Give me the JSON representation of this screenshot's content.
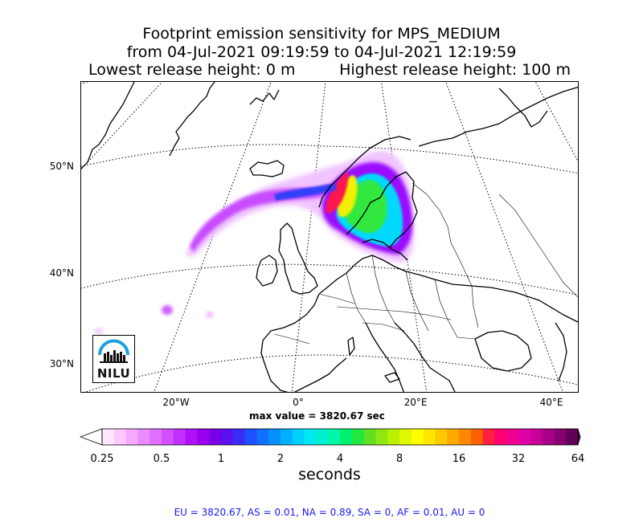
{
  "title": {
    "line1": "Footprint emission sensitivity for MPS_MEDIUM",
    "line2": "from 04-Jul-2021 09:19:59 to 04-Jul-2021 12:19:59",
    "line3_left": "Lowest release height: 0 m",
    "line3_right": "Highest release height: 100 m"
  },
  "map": {
    "lat_labels": [
      "50°N",
      "40°N",
      "30°N"
    ],
    "lon_labels": [
      "20°W",
      "0°",
      "20°E",
      "40°E"
    ],
    "max_value_text": "max value = 3820.67 sec",
    "logo_text": "NILU",
    "colors": {
      "coast": "#000000",
      "grid": "#000000",
      "plume_core": "#d4145a",
      "plume_outer": "#e8b0ff"
    }
  },
  "colorbar": {
    "tick_labels": [
      "0.25",
      "0.5",
      "1",
      "2",
      "4",
      "8",
      "16",
      "32",
      "64"
    ],
    "units_label": "seconds",
    "colors": [
      "#ffe8ff",
      "#ffc8ff",
      "#f5aaff",
      "#ea8cff",
      "#e070ff",
      "#d350ff",
      "#c230ff",
      "#b010f5",
      "#9a00ee",
      "#7a00e8",
      "#5a10f0",
      "#3a2cf5",
      "#1e50ff",
      "#1070ff",
      "#0890ff",
      "#00b0ff",
      "#00d0ff",
      "#00e8f0",
      "#00f0d0",
      "#00f8a8",
      "#00f070",
      "#20e840",
      "#60e020",
      "#90e810",
      "#b8f000",
      "#e0f800",
      "#ffff00",
      "#ffe800",
      "#ffc800",
      "#ffa800",
      "#ff8800",
      "#ff6000",
      "#ff2040",
      "#ff0070",
      "#f00090",
      "#e000a8",
      "#c80098",
      "#a80088",
      "#880070",
      "#600058"
    ]
  },
  "footer": {
    "text": "EU = 3820.67,  AS = 0.01,  NA = 0.89,  SA = 0,  AF = 0.01,  AU = 0"
  }
}
